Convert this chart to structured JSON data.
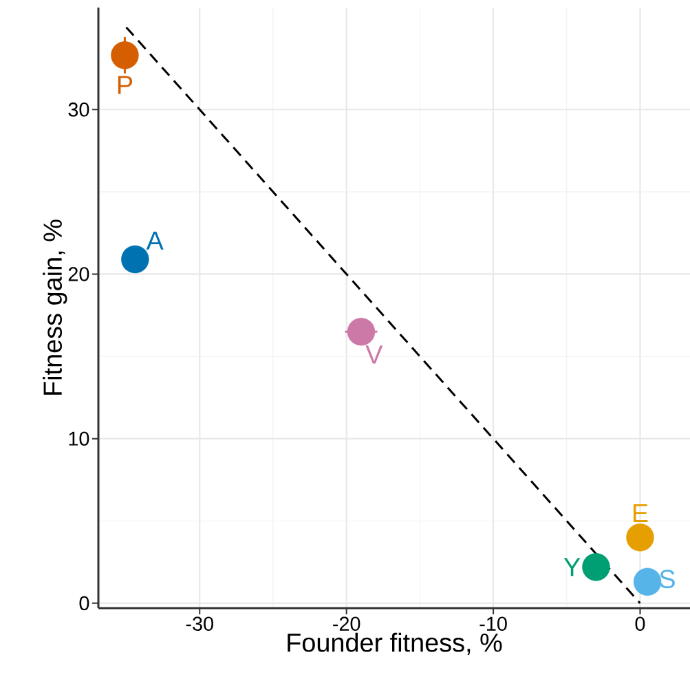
{
  "chart_data": {
    "type": "scatter",
    "xlabel": "Founder fitness, %",
    "ylabel": "Fitness gain, %",
    "xlim": [
      -36.9,
      3.4
    ],
    "ylim": [
      -0.3,
      36.2
    ],
    "xticks": [
      -30,
      -20,
      -10,
      0
    ],
    "yticks": [
      0,
      10,
      20,
      30
    ],
    "grid": true,
    "legend": "top left",
    "series": [
      {
        "name": "P",
        "color": "#d55e00",
        "x": [
          -35.1
        ],
        "values": [
          33.3
        ],
        "errors": [
          1.1
        ]
      },
      {
        "name": "A",
        "color": "#0072b2",
        "x": [
          -34.4
        ],
        "values": [
          20.9
        ]
      },
      {
        "name": "V",
        "color": "#cc79a7",
        "x": [
          -19.0
        ],
        "values": [
          16.5
        ],
        "xerrors": [
          1.1
        ]
      },
      {
        "name": "Y",
        "color": "#009e73",
        "x": [
          -3.0
        ],
        "values": [
          2.2
        ]
      },
      {
        "name": "E",
        "color": "#e69f00",
        "x": [
          0.0
        ],
        "values": [
          4.0
        ]
      },
      {
        "name": "S",
        "color": "#56b4e9",
        "x": [
          0.5
        ],
        "values": [
          1.3
        ]
      },
      {
        "type": "line",
        "color": "#000000",
        "line_style": "dashed",
        "marker": "none",
        "x": [
          -35,
          0
        ],
        "values": [
          35,
          0
        ]
      }
    ]
  }
}
